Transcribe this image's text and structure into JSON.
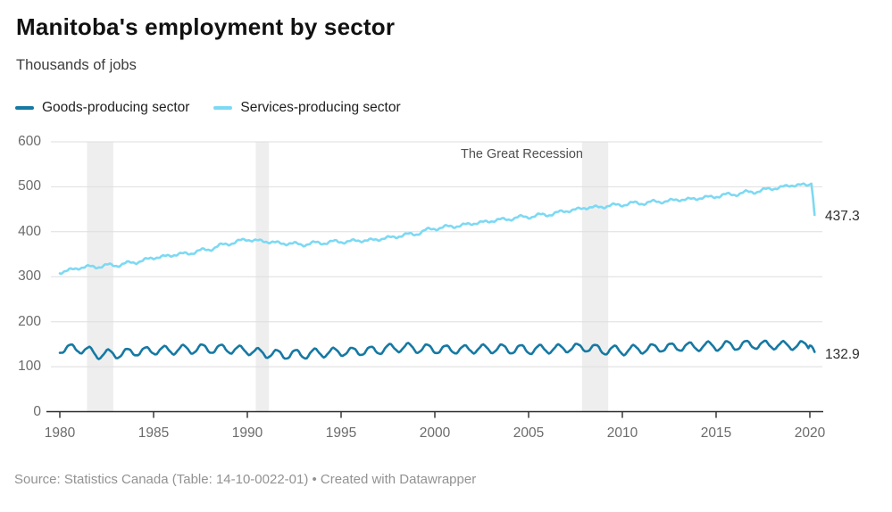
{
  "title": "Manitoba's employment by sector",
  "subtitle": "Thousands of jobs",
  "footer": {
    "source": "Source: Statistics Canada (Table: 14-10-0022-01) • Created with Datawrapper"
  },
  "colors": {
    "goods": "#1579a3",
    "services": "#7dd9f3",
    "recession_band": "#eeeeee",
    "gridline": "#dedede",
    "axis": "#2b2b2b",
    "tick_label": "#6b6b6b",
    "annotation": "#4f4f4f",
    "end_label": "#2e2e2e"
  },
  "chart_data": {
    "type": "line",
    "title": "Manitoba's employment by sector",
    "ylabel": "Thousands of jobs",
    "unit": "thousands of jobs",
    "ylim": [
      0,
      600
    ],
    "yticks": [
      0,
      100,
      200,
      300,
      400,
      500,
      600
    ],
    "xticks": [
      1980,
      1985,
      1990,
      1995,
      2000,
      2005,
      2010,
      2015,
      2020
    ],
    "grid": true,
    "legend_position": "top-left",
    "years": [
      1980,
      1981,
      1982,
      1983,
      1984,
      1985,
      1986,
      1987,
      1988,
      1989,
      1990,
      1991,
      1992,
      1993,
      1994,
      1995,
      1996,
      1997,
      1998,
      1999,
      2000,
      2001,
      2002,
      2003,
      2004,
      2005,
      2006,
      2007,
      2008,
      2009,
      2010,
      2011,
      2012,
      2013,
      2014,
      2015,
      2016,
      2017,
      2018,
      2019,
      2020
    ],
    "series": [
      {
        "name": "Goods-producing sector",
        "color": "#1579a3",
        "annual_values": [
          139,
          141,
          128,
          128,
          133,
          136,
          137,
          139,
          140,
          139,
          136,
          129,
          127,
          128,
          131,
          133,
          134,
          137,
          143,
          141,
          139,
          138,
          139,
          140,
          139,
          138,
          139,
          141,
          143,
          137,
          136,
          139,
          142,
          144,
          145,
          146,
          147,
          149,
          148,
          147,
          132.9
        ],
        "pre_crash_2020": 147,
        "months_2020": [
          147,
          146,
          141,
          132.9
        ],
        "end_value": 132.9,
        "end_label": "132.9",
        "seasonal_amplitude": 9.5,
        "noise_amplitude": 1.4
      },
      {
        "name": "Services-producing sector",
        "color": "#7dd9f3",
        "annual_values": [
          309,
          320,
          323,
          326,
          332,
          342,
          348,
          353,
          362,
          374,
          383,
          378,
          374,
          372,
          376,
          378,
          380,
          383,
          390,
          396,
          408,
          412,
          418,
          424,
          429,
          434,
          438,
          446,
          453,
          456,
          461,
          464,
          467,
          471,
          474,
          479,
          484,
          489,
          496,
          503,
          437.3
        ],
        "pre_crash_2020": 505,
        "months_2020": [
          505,
          507,
          476,
          437.3
        ],
        "end_value": 437.3,
        "end_label": "437.3",
        "seasonal_amplitude": 3,
        "noise_amplitude": 2
      }
    ],
    "annotations": [
      {
        "text": "The Great Recession"
      }
    ],
    "shaded_periods": [
      {
        "from": 1981.45,
        "to": 1982.85
      },
      {
        "from": 1990.45,
        "to": 1991.15
      },
      {
        "from": 2007.85,
        "to": 2009.25
      }
    ]
  }
}
